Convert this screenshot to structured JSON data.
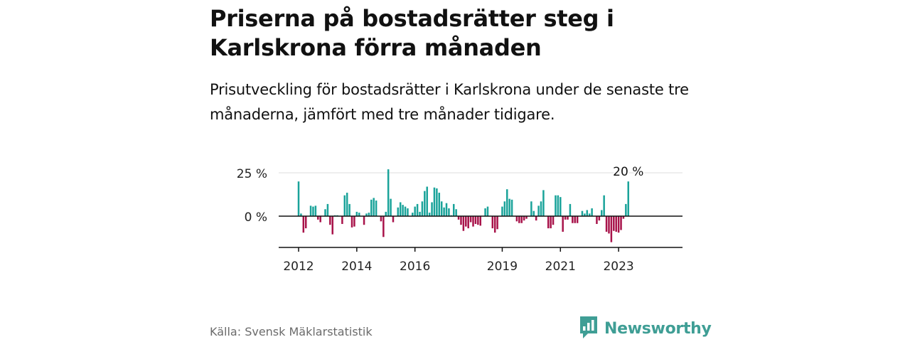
{
  "header": {
    "title": "Priserna på bostadsrätter steg i Karlskrona förra månaden",
    "subtitle": "Prisutveckling för bostadsrätter i Karlskrona under de senaste tre månaderna, jämfört med tre månader tidigare."
  },
  "footer": {
    "source": "Källa: Svensk Mäklarstatistik",
    "brand": "Newsworthy"
  },
  "colors": {
    "positive": "#1aa39a",
    "negative": "#a8134a",
    "axis": "#111111",
    "grid": "#dddddd",
    "brand": "#3f9e95"
  },
  "icons": {
    "brand_logo": "bar-chart-speech-bubble-icon"
  },
  "chart_data": {
    "type": "bar",
    "unit": "%",
    "ylim": [
      -18,
      27
    ],
    "yticks": [
      {
        "value": 25,
        "label": "25 %"
      },
      {
        "value": 0,
        "label": "0 %"
      }
    ],
    "grid": true,
    "xticks": [
      {
        "index": 0,
        "label": "2012"
      },
      {
        "index": 24,
        "label": "2014"
      },
      {
        "index": 48,
        "label": "2016"
      },
      {
        "index": 84,
        "label": "2019"
      },
      {
        "index": 108,
        "label": "2021"
      },
      {
        "index": 132,
        "label": "2023"
      }
    ],
    "last_value_label": "20 %",
    "values": [
      20,
      1.5,
      -9.5,
      -7,
      0,
      6,
      5.5,
      6,
      -2,
      -3.5,
      0,
      4,
      7,
      -5,
      -10.5,
      0.5,
      0.5,
      0,
      -4.5,
      12,
      13.5,
      7,
      -6.5,
      -6,
      2.5,
      2,
      0,
      -5,
      1.5,
      2,
      9.5,
      10.5,
      9,
      0,
      -3,
      -12,
      2.5,
      27,
      10,
      -3.5,
      0,
      5,
      8,
      6.5,
      5.5,
      4.5,
      0,
      2,
      5.5,
      7,
      2.5,
      8.5,
      14.5,
      17,
      2,
      8,
      16.5,
      16,
      13.5,
      8.5,
      5,
      7.5,
      4.5,
      0.5,
      7,
      4,
      -2,
      -5,
      -8.5,
      -6,
      -7,
      -3.5,
      -6,
      -4.5,
      -5,
      -5.5,
      0,
      4.5,
      5.5,
      0,
      -7,
      -9.5,
      -7.5,
      0,
      5.5,
      8.5,
      15.5,
      10,
      9.5,
      0,
      -3,
      -4,
      -4,
      -2.5,
      -1.5,
      0,
      8.5,
      3,
      -2.5,
      6,
      8.5,
      15,
      0,
      -7,
      -7,
      -5,
      12,
      12,
      11,
      -9,
      -2,
      -2,
      7,
      -4,
      -4,
      -4,
      0,
      3,
      1.5,
      3.5,
      1.5,
      4.5,
      0,
      -4.5,
      -2.5,
      3.5,
      12,
      -9,
      -10,
      -15,
      -8.5,
      -9,
      -9.5,
      -8,
      -1.5,
      7,
      20
    ]
  }
}
